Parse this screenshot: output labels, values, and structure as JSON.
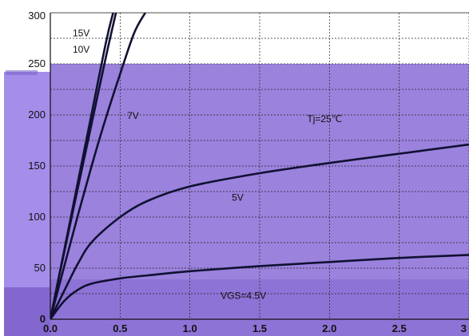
{
  "chart_data": {
    "type": "line",
    "title": "",
    "xlabel": "",
    "ylabel": "",
    "xlim": [
      0,
      3
    ],
    "ylim": [
      0,
      300
    ],
    "x_ticks": [
      0,
      0.5,
      1,
      1.5,
      2,
      2.5,
      3
    ],
    "x_tick_labels": [
      "0.0",
      "0.5",
      "1.0",
      "1.5",
      "2.0",
      "2.5",
      "3"
    ],
    "y_ticks": [
      0,
      50,
      100,
      150,
      200,
      250,
      300
    ],
    "y_tick_labels": [
      "0",
      "50",
      "100",
      "150",
      "200",
      "250",
      "300"
    ],
    "grid": true,
    "series": [
      {
        "name": "15V",
        "x": [
          0,
          0.1,
          0.2,
          0.3,
          0.4,
          0.45
        ],
        "y": [
          0,
          68,
          136,
          204,
          272,
          300
        ]
      },
      {
        "name": "10V",
        "x": [
          0,
          0.1,
          0.2,
          0.3,
          0.4,
          0.47
        ],
        "y": [
          0,
          66,
          130,
          194,
          258,
          300
        ]
      },
      {
        "name": "7V",
        "x": [
          0,
          0.1,
          0.2,
          0.3,
          0.4,
          0.5,
          0.6,
          0.68
        ],
        "y": [
          0,
          52,
          103,
          152,
          198,
          240,
          280,
          300
        ]
      },
      {
        "name": "5V",
        "x": [
          0,
          0.1,
          0.2,
          0.3,
          0.5,
          0.7,
          1.0,
          1.5,
          2.0,
          2.5,
          3.0
        ],
        "y": [
          0,
          28,
          55,
          76,
          100,
          116,
          130,
          143,
          153,
          162,
          171
        ]
      },
      {
        "name": "VGS=4.5V",
        "x": [
          0,
          0.1,
          0.2,
          0.3,
          0.5,
          0.7,
          1.0,
          1.5,
          2.0,
          2.5,
          3.0
        ],
        "y": [
          0,
          18,
          29,
          35,
          40,
          43,
          47,
          52,
          56,
          60,
          63
        ]
      }
    ],
    "annotations": [
      {
        "text": "15V",
        "x": 0.16,
        "y": 277
      },
      {
        "text": "10V",
        "x": 0.16,
        "y": 261
      },
      {
        "text": "7V",
        "x": 0.55,
        "y": 196
      },
      {
        "text": "Tj=25℃",
        "x": 1.84,
        "y": 193
      },
      {
        "text": "5V",
        "x": 1.3,
        "y": 116
      },
      {
        "text": "VGS=4.5V",
        "x": 1.22,
        "y": 20
      }
    ]
  },
  "colors": {
    "overlay_main": "#9b82dd",
    "overlay_left_strip": "#a48eea",
    "overlay_bottom": "#8367cf",
    "curve": "#111133",
    "background": "#ffffff"
  }
}
